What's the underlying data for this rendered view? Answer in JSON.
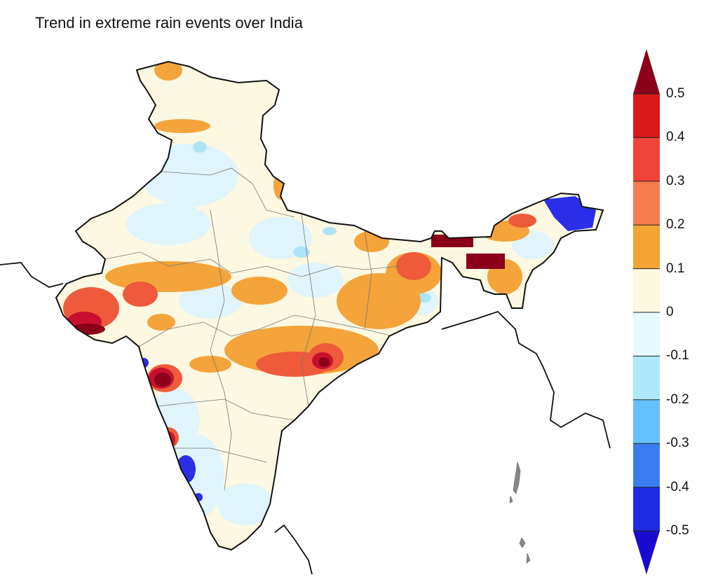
{
  "title": "Trend in extreme rain events over India",
  "legend": {
    "ticks": [
      "0.5",
      "0.4",
      "0.3",
      "0.2",
      "0.1",
      "0",
      "-0.1",
      "-0.2",
      "-0.3",
      "-0.4",
      "-0.5"
    ],
    "colors_top_to_bottom": [
      "#8b0018",
      "#d7191c",
      "#f0433a",
      "#f57d4e",
      "#f2a533",
      "#fdf8e0",
      "#e6fafe",
      "#aee8fb",
      "#66c2ff",
      "#3a7cf0",
      "#1f2be0",
      "#1a0ad0"
    ]
  },
  "map": {
    "colors": {
      "base": "#fdf8e1",
      "neg_light": "#dff4fb",
      "neg_mid": "#aee4f7",
      "neg_strong": "#2a2ee6",
      "pos_light": "#f4a43a",
      "pos_mid": "#ee5a3a",
      "pos_strong": "#c8102e",
      "pos_extreme": "#8b0018",
      "border": "#111111",
      "internal_border": "#777777"
    }
  }
}
